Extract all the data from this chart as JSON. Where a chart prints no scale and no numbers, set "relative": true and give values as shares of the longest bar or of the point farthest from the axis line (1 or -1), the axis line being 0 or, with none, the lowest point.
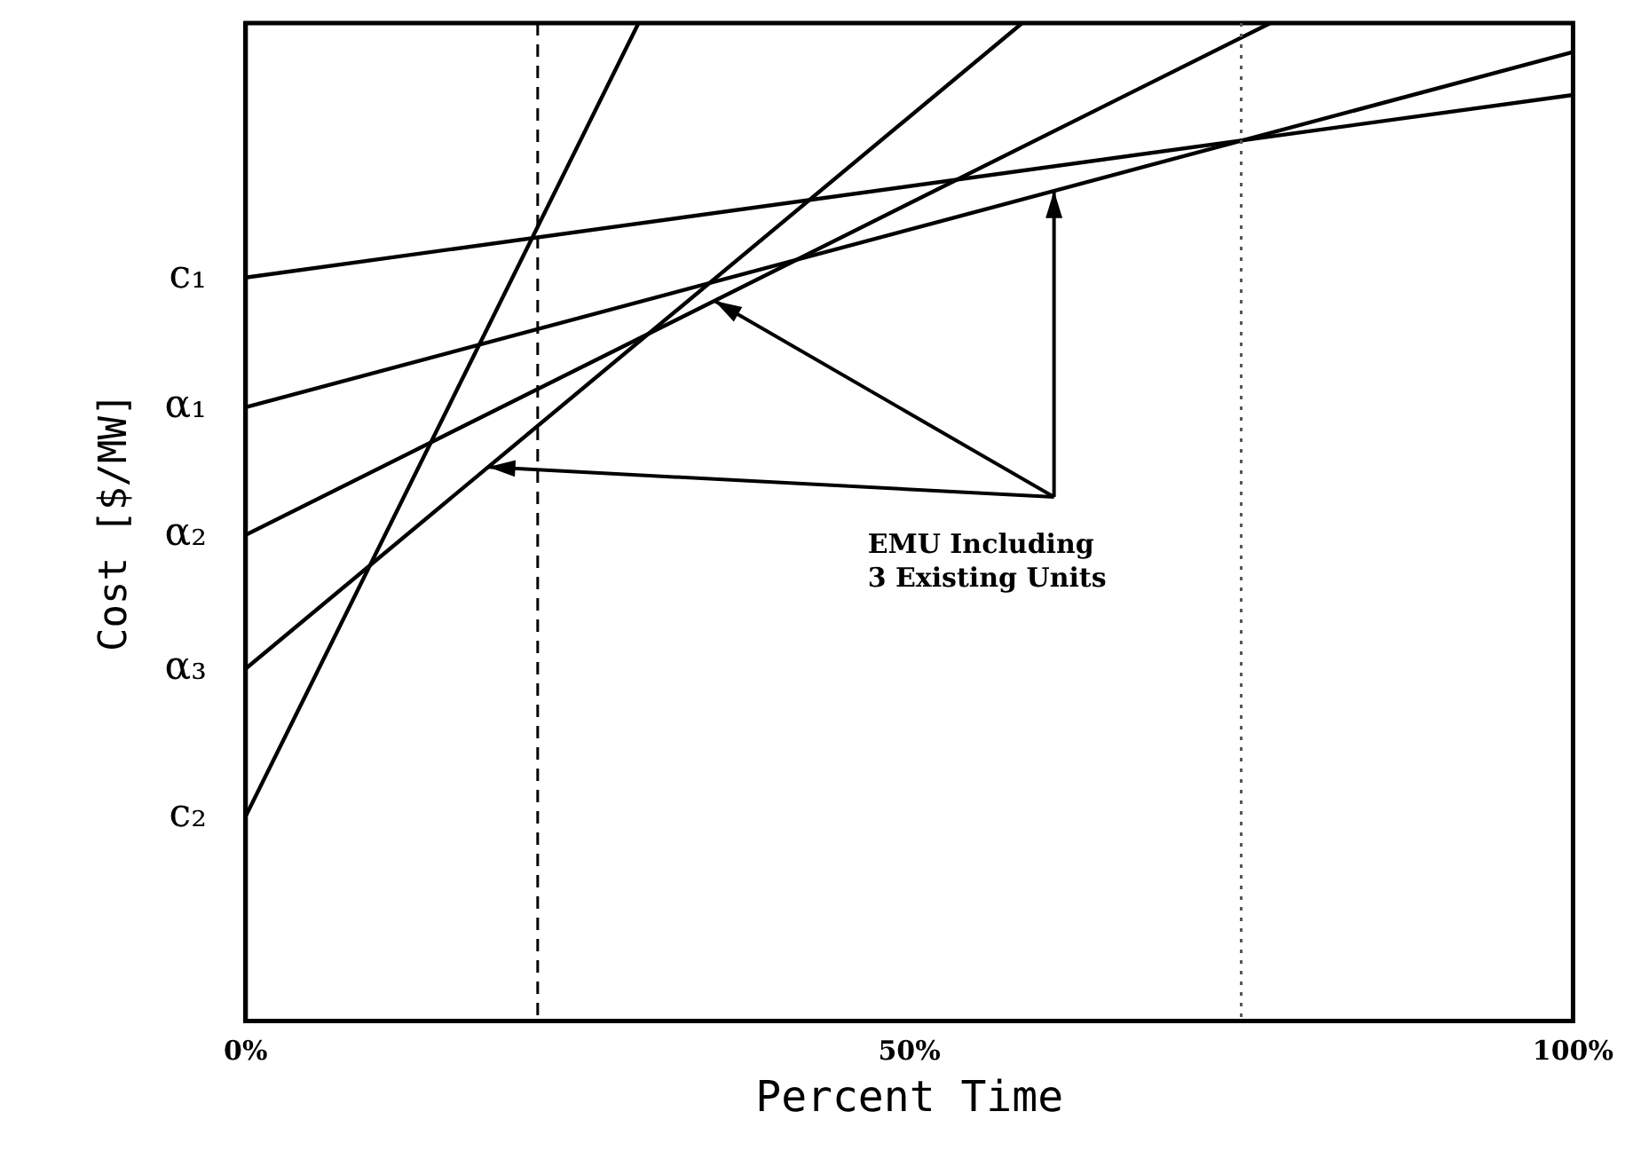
{
  "chart_data": {
    "type": "line",
    "relative": true,
    "xlabel": "Percent Time",
    "ylabel": "Cost [$/MW]",
    "xlim": [
      0,
      100
    ],
    "xticks": [
      {
        "value": 0,
        "label": "0%"
      },
      {
        "value": 50,
        "label": "50%"
      },
      {
        "value": 100,
        "label": "100%"
      }
    ],
    "grid": false,
    "legend": false,
    "marker": "none",
    "line_style": "solid",
    "series": [
      {
        "name": "c₁",
        "color": "#000000",
        "x": [
          0,
          100
        ],
        "values": [
          0.745,
          0.928
        ]
      },
      {
        "name": "α₁",
        "color": "#000000",
        "x": [
          0,
          100
        ],
        "values": [
          0.615,
          0.971
        ]
      },
      {
        "name": "α₂",
        "color": "#000000",
        "x": [
          0,
          77.2
        ],
        "values": [
          0.487,
          1
        ]
      },
      {
        "name": "α₃",
        "color": "#000000",
        "x": [
          0,
          58.5
        ],
        "values": [
          0.353,
          1
        ]
      },
      {
        "name": "c₂",
        "color": "#000000",
        "x": [
          0,
          29.6
        ],
        "values": [
          0.205,
          1
        ]
      }
    ],
    "ref_lines": [
      {
        "axis": "x",
        "value": 22,
        "line_style": "dashed",
        "color": "#000000"
      },
      {
        "axis": "x",
        "value": 75,
        "line_style": "dotted",
        "color": "#555555"
      }
    ],
    "annotations": [
      "EMU Including\n3 Existing Units"
    ]
  }
}
